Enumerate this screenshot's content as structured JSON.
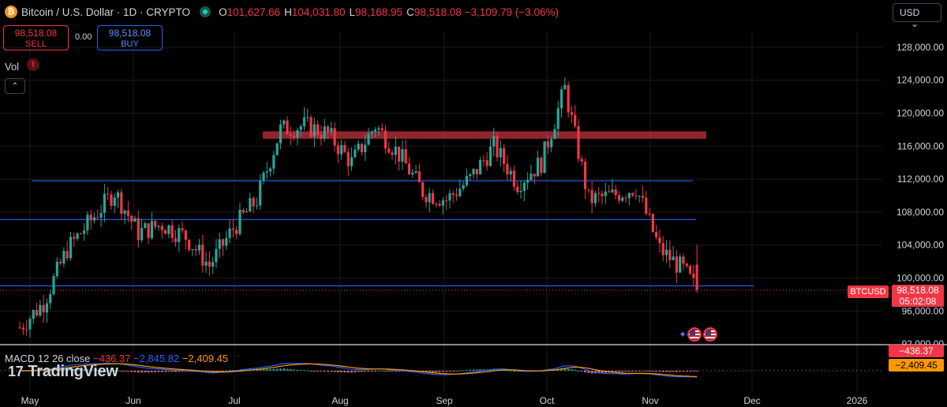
{
  "header": {
    "title": "Bitcoin / U.S. Dollar · 1D · CRYPTO",
    "btc_glyph": "₿",
    "ohlc": [
      {
        "k": "O",
        "v": "101,627.66"
      },
      {
        "k": "H",
        "v": "104,031.80"
      },
      {
        "k": "L",
        "v": "98,168.95"
      },
      {
        "k": "C",
        "v": "98,518.08 −3,109.79 (−3.06%)"
      }
    ]
  },
  "trade": {
    "sell_price": "98,518.08",
    "sell_label": "SELL",
    "spread": "0.00",
    "buy_price": "98,518.08",
    "buy_label": "BUY"
  },
  "currency": {
    "selected": "USD",
    "chevron": "⌄"
  },
  "volume": {
    "label": "Vol",
    "warn": "!"
  },
  "collapse_glyph": "⌃",
  "price_label": {
    "symbol": "BTCUSD",
    "price": "98,518.08",
    "countdown": "05:02:08"
  },
  "macd": {
    "label": "MACD 12 26 close",
    "v1": "−436.37",
    "v2": "−2,845.82",
    "v3": "−2,409.45",
    "tag1": "−436.37",
    "tag2": "−2,409.45"
  },
  "events": {
    "spark": "✦"
  },
  "branding": {
    "mark": "17",
    "name": "TradingView"
  },
  "colors": {
    "up": "#26a69a",
    "down": "#f23645",
    "hline": "#2962ff",
    "zone": "#c2323e",
    "macd": "#2962ff",
    "signal": "#ff9800",
    "grid": "#1a1a1a"
  },
  "chart_data": {
    "type": "candlestick",
    "title": "Bitcoin / U.S. Dollar · 1D · CRYPTO",
    "x_tick_labels": [
      "May",
      "Jun",
      "Jul",
      "Aug",
      "Sep",
      "Oct",
      "Nov",
      "Dec",
      "2026"
    ],
    "y_tick_labels": [
      "92,000.00",
      "96,000.00",
      "100,000.00",
      "104,000.00",
      "108,000.00",
      "112,000.00",
      "116,000.00",
      "120,000.00",
      "124,000.00",
      "128,000.00"
    ],
    "ylim": [
      91000,
      130000
    ],
    "timeframe": "1D",
    "weekly_close_path": [
      [
        "Apr 28",
        94000
      ],
      [
        "May 5",
        97000
      ],
      [
        "May 12",
        103500
      ],
      [
        "May 19",
        107000
      ],
      [
        "May 26",
        110500
      ],
      [
        "Jun 2",
        105500
      ],
      [
        "Jun 9",
        106500
      ],
      [
        "Jun 16",
        105000
      ],
      [
        "Jun 23",
        101500
      ],
      [
        "Jun 30",
        106000
      ],
      [
        "Jul 7",
        109500
      ],
      [
        "Jul 14",
        118000
      ],
      [
        "Jul 21",
        118500
      ],
      [
        "Jul 28",
        117500
      ],
      [
        "Aug 4",
        114000
      ],
      [
        "Aug 11",
        118500
      ],
      [
        "Aug 18",
        115000
      ],
      [
        "Aug 25",
        110500
      ],
      [
        "Sep 1",
        109500
      ],
      [
        "Sep 8",
        112000
      ],
      [
        "Sep 15",
        116000
      ],
      [
        "Sep 22",
        111500
      ],
      [
        "Sep 29",
        114000
      ],
      [
        "Oct 6",
        123000
      ],
      [
        "Oct 13",
        109500
      ],
      [
        "Oct 20",
        110000
      ],
      [
        "Oct 27",
        111000
      ],
      [
        "Nov 3",
        103500
      ],
      [
        "Nov 10",
        101000
      ],
      [
        "Nov 14",
        98518.08
      ]
    ],
    "last": {
      "open": 101627.66,
      "high": 104031.8,
      "low": 98168.95,
      "close": 98518.08,
      "change": -3109.79,
      "change_pct": -3.06
    },
    "horizontal_lines": [
      111800,
      107100,
      99050
    ],
    "resistance_zone": [
      116900,
      117800
    ],
    "macd": {
      "fast": 12,
      "slow": 26,
      "source": "close",
      "histogram": -436.37,
      "macd": -2845.82,
      "signal": -2409.45
    }
  }
}
